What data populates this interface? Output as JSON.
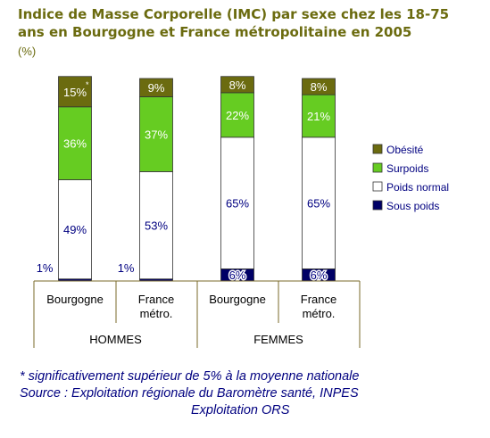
{
  "title_line1": "Indice de Masse Corporelle (IMC) par sexe chez les 18-75",
  "title_line2": "ans en Bourgogne et France métropolitaine en 2005",
  "subtitle": "(%)",
  "colors": {
    "obesite": "#6b6b0f",
    "surpoids": "#66cc22",
    "poids_normal": "#ffffff",
    "sous_poids": "#000066",
    "text": "#000080"
  },
  "chart_data": {
    "type": "bar",
    "stacked": true,
    "categories": [
      "Bourgogne",
      "France métro.",
      "Bourgogne",
      "France métro."
    ],
    "groups": [
      {
        "label": "HOMMES",
        "categories": [
          "Bourgogne",
          "France métro."
        ]
      },
      {
        "label": "FEMMES",
        "categories": [
          "Bourgogne",
          "France métro."
        ]
      }
    ],
    "series": [
      {
        "name": "Sous poids",
        "values": [
          1,
          1,
          6,
          6
        ],
        "labels": [
          "1%",
          "1%",
          "6%",
          "6%"
        ]
      },
      {
        "name": "Poids normal",
        "values": [
          49,
          53,
          65,
          65
        ],
        "labels": [
          "49%",
          "53%",
          "65%",
          "65%"
        ]
      },
      {
        "name": "Surpoids",
        "values": [
          36,
          37,
          22,
          21
        ],
        "labels": [
          "36%",
          "37%",
          "22%",
          "21%"
        ]
      },
      {
        "name": "Obésité",
        "values": [
          15,
          9,
          8,
          8
        ],
        "labels": [
          "15%",
          "9%",
          "8%",
          "8%"
        ]
      }
    ],
    "annotations": [
      {
        "category_index": 0,
        "series": "Obésité",
        "text": "*"
      }
    ],
    "legend": [
      "Obésité",
      "Surpoids",
      "Poids normal",
      "Sous poids"
    ],
    "legend_position": "right",
    "ylim": [
      0,
      100
    ]
  },
  "notes": {
    "n1": "* significativement supérieur de 5% à la moyenne nationale",
    "n2": "Source : Exploitation régionale du Baromètre santé, INPES",
    "n3": "Exploitation ORS"
  }
}
